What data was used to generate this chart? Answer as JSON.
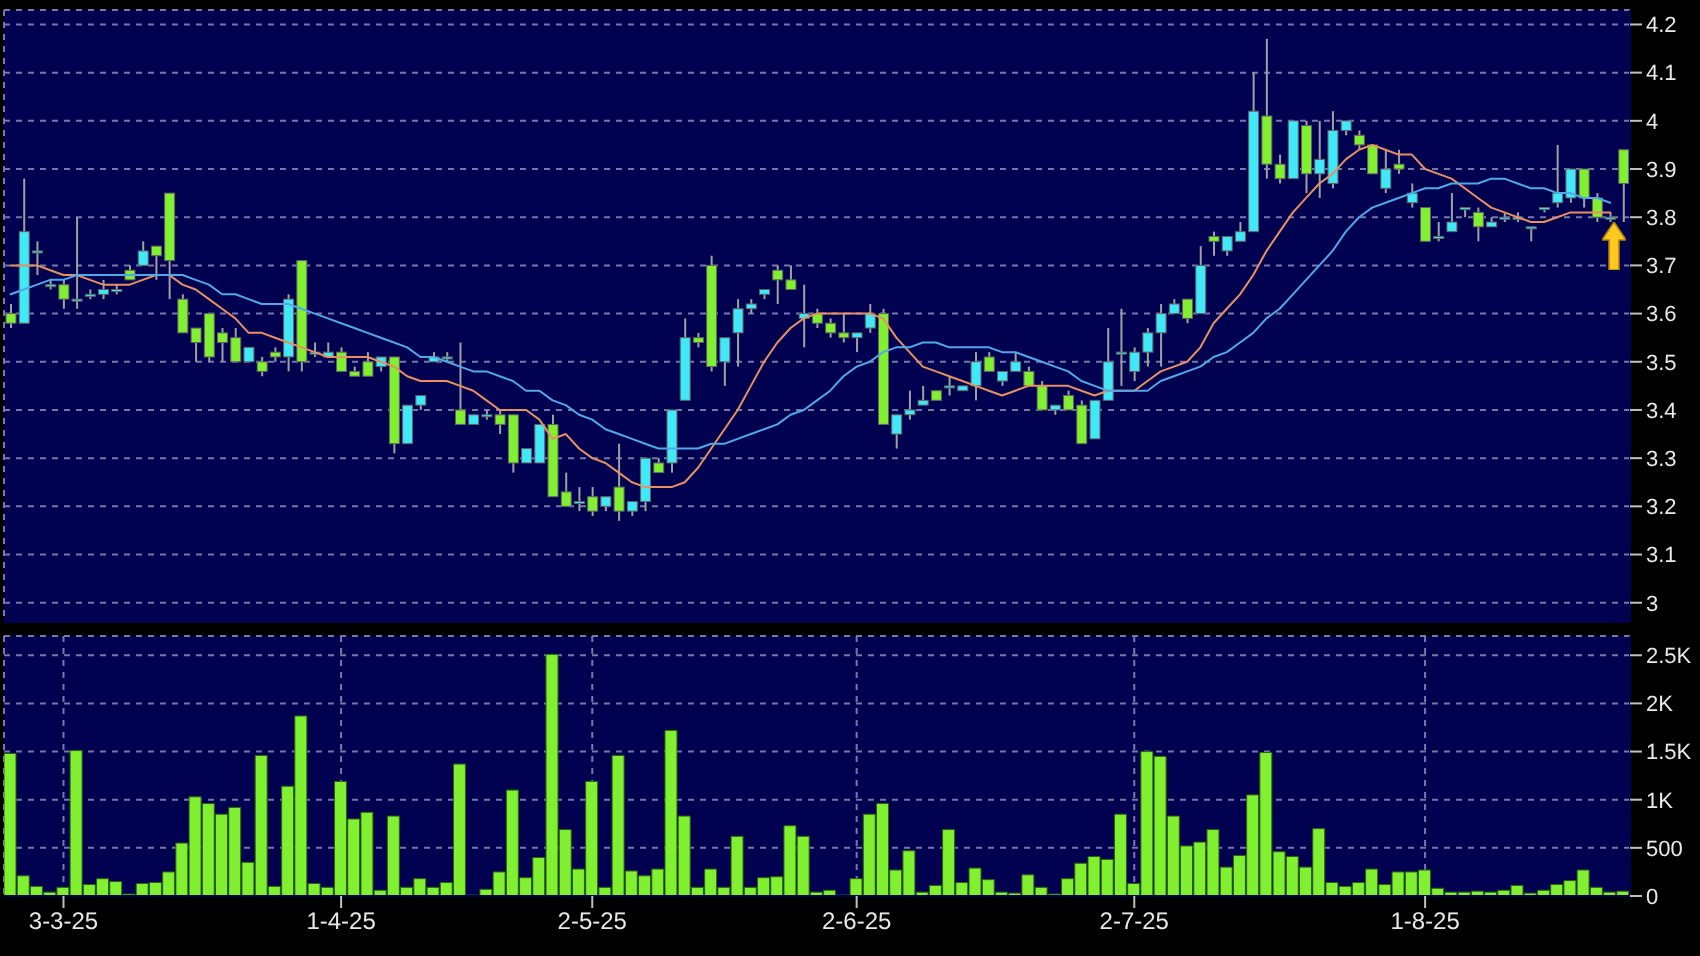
{
  "chart_data": [
    {
      "type": "candlestick",
      "tick_labels": "y",
      "grid": true,
      "categories": [
        null,
        null,
        null,
        null,
        null,
        null,
        null,
        null,
        null,
        null,
        null,
        null,
        null,
        null,
        null,
        null,
        null,
        null,
        null,
        null,
        null,
        null,
        null,
        null,
        null,
        null,
        null,
        null,
        null,
        null,
        null,
        null,
        null,
        null,
        null,
        null,
        null,
        null,
        null,
        null,
        null,
        null,
        null,
        null,
        null,
        null,
        null,
        null,
        null,
        null,
        null,
        null,
        null,
        null,
        null,
        null,
        null,
        null,
        null,
        null,
        null,
        null,
        null,
        null,
        null,
        null,
        null,
        null,
        null,
        null,
        null,
        null,
        null,
        null,
        null,
        null,
        null,
        null,
        null,
        null,
        null,
        null,
        null,
        null,
        null,
        null,
        null,
        null,
        null,
        null,
        null,
        null,
        null,
        null,
        null,
        null,
        null,
        null,
        null,
        null,
        null,
        null,
        null,
        null,
        null,
        null,
        null,
        null,
        null,
        null,
        null,
        null,
        null,
        null,
        null,
        null,
        null,
        null,
        null,
        null,
        null,
        null,
        null
      ],
      "ohlc": [
        [
          3.6,
          3.62,
          3.57,
          3.58
        ],
        [
          3.58,
          3.88,
          3.58,
          3.77
        ],
        [
          3.73,
          3.75,
          3.68,
          3.73
        ],
        [
          3.66,
          3.67,
          3.65,
          3.66
        ],
        [
          3.66,
          3.67,
          3.61,
          3.63
        ],
        [
          3.63,
          3.8,
          3.61,
          3.63
        ],
        [
          3.64,
          3.65,
          3.63,
          3.64
        ],
        [
          3.64,
          3.67,
          3.63,
          3.65
        ],
        [
          3.65,
          3.66,
          3.64,
          3.65
        ],
        [
          3.69,
          3.7,
          3.67,
          3.67
        ],
        [
          3.7,
          3.75,
          3.7,
          3.73
        ],
        [
          3.74,
          3.74,
          3.67,
          3.72
        ],
        [
          3.85,
          3.85,
          3.63,
          3.71
        ],
        [
          3.63,
          3.64,
          3.56,
          3.56
        ],
        [
          3.57,
          3.57,
          3.5,
          3.54
        ],
        [
          3.6,
          3.6,
          3.5,
          3.51
        ],
        [
          3.56,
          3.57,
          3.5,
          3.54
        ],
        [
          3.55,
          3.57,
          3.5,
          3.5
        ],
        [
          3.5,
          3.53,
          3.5,
          3.53
        ],
        [
          3.5,
          3.51,
          3.47,
          3.48
        ],
        [
          3.52,
          3.53,
          3.5,
          3.51
        ],
        [
          3.51,
          3.64,
          3.48,
          3.63
        ],
        [
          3.71,
          3.71,
          3.48,
          3.5
        ],
        [
          3.52,
          3.54,
          3.51,
          3.52
        ],
        [
          3.51,
          3.54,
          3.51,
          3.52
        ],
        [
          3.52,
          3.53,
          3.48,
          3.48
        ],
        [
          3.48,
          3.49,
          3.47,
          3.47
        ],
        [
          3.5,
          3.52,
          3.47,
          3.47
        ],
        [
          3.49,
          3.51,
          3.48,
          3.51
        ],
        [
          3.51,
          3.51,
          3.31,
          3.33
        ],
        [
          3.33,
          3.41,
          3.33,
          3.41
        ],
        [
          3.41,
          3.43,
          3.4,
          3.43
        ],
        [
          3.5,
          3.52,
          3.5,
          3.51
        ],
        [
          3.51,
          3.52,
          3.5,
          3.51
        ],
        [
          3.4,
          3.54,
          3.37,
          3.37
        ],
        [
          3.37,
          3.39,
          3.37,
          3.39
        ],
        [
          3.39,
          3.4,
          3.38,
          3.39
        ],
        [
          3.39,
          3.4,
          3.35,
          3.37
        ],
        [
          3.39,
          3.39,
          3.27,
          3.29
        ],
        [
          3.29,
          3.32,
          3.29,
          3.32
        ],
        [
          3.29,
          3.37,
          3.29,
          3.37
        ],
        [
          3.37,
          3.39,
          3.22,
          3.22
        ],
        [
          3.23,
          3.27,
          3.2,
          3.2
        ],
        [
          3.21,
          3.24,
          3.19,
          3.21
        ],
        [
          3.22,
          3.24,
          3.18,
          3.19
        ],
        [
          3.2,
          3.22,
          3.19,
          3.22
        ],
        [
          3.24,
          3.33,
          3.17,
          3.19
        ],
        [
          3.19,
          3.21,
          3.18,
          3.21
        ],
        [
          3.21,
          3.3,
          3.19,
          3.3
        ],
        [
          3.29,
          3.3,
          3.27,
          3.27
        ],
        [
          3.29,
          3.4,
          3.27,
          3.4
        ],
        [
          3.42,
          3.59,
          3.42,
          3.55
        ],
        [
          3.55,
          3.56,
          3.53,
          3.54
        ],
        [
          3.7,
          3.72,
          3.48,
          3.49
        ],
        [
          3.5,
          3.55,
          3.45,
          3.55
        ],
        [
          3.56,
          3.63,
          3.49,
          3.61
        ],
        [
          3.61,
          3.63,
          3.6,
          3.62
        ],
        [
          3.64,
          3.65,
          3.63,
          3.65
        ],
        [
          3.69,
          3.7,
          3.62,
          3.67
        ],
        [
          3.67,
          3.7,
          3.65,
          3.65
        ],
        [
          3.59,
          3.66,
          3.53,
          3.6
        ],
        [
          3.6,
          3.61,
          3.57,
          3.58
        ],
        [
          3.58,
          3.59,
          3.55,
          3.56
        ],
        [
          3.56,
          3.6,
          3.54,
          3.55
        ],
        [
          3.55,
          3.56,
          3.52,
          3.56
        ],
        [
          3.57,
          3.62,
          3.56,
          3.6
        ],
        [
          3.6,
          3.61,
          3.37,
          3.37
        ],
        [
          3.35,
          3.39,
          3.32,
          3.39
        ],
        [
          3.39,
          3.44,
          3.38,
          3.4
        ],
        [
          3.41,
          3.45,
          3.41,
          3.42
        ],
        [
          3.44,
          3.44,
          3.42,
          3.42
        ],
        [
          3.45,
          3.47,
          3.43,
          3.45
        ],
        [
          3.44,
          3.45,
          3.44,
          3.45
        ],
        [
          3.45,
          3.52,
          3.42,
          3.5
        ],
        [
          3.51,
          3.52,
          3.48,
          3.48
        ],
        [
          3.46,
          3.48,
          3.45,
          3.48
        ],
        [
          3.48,
          3.52,
          3.48,
          3.5
        ],
        [
          3.48,
          3.49,
          3.45,
          3.45
        ],
        [
          3.45,
          3.46,
          3.4,
          3.4
        ],
        [
          3.4,
          3.41,
          3.39,
          3.41
        ],
        [
          3.43,
          3.44,
          3.4,
          3.4
        ],
        [
          3.41,
          3.42,
          3.33,
          3.33
        ],
        [
          3.34,
          3.42,
          3.34,
          3.42
        ],
        [
          3.42,
          3.57,
          3.42,
          3.5
        ],
        [
          3.52,
          3.61,
          3.45,
          3.52
        ],
        [
          3.48,
          3.53,
          3.46,
          3.52
        ],
        [
          3.52,
          3.57,
          3.49,
          3.56
        ],
        [
          3.56,
          3.62,
          3.49,
          3.6
        ],
        [
          3.6,
          3.63,
          3.6,
          3.62
        ],
        [
          3.63,
          3.63,
          3.58,
          3.59
        ],
        [
          3.6,
          3.74,
          3.6,
          3.7
        ],
        [
          3.76,
          3.77,
          3.72,
          3.75
        ],
        [
          3.73,
          3.76,
          3.72,
          3.76
        ],
        [
          3.75,
          3.79,
          3.75,
          3.77
        ],
        [
          3.77,
          4.1,
          3.77,
          4.02
        ],
        [
          4.01,
          4.17,
          3.88,
          3.91
        ],
        [
          3.91,
          3.93,
          3.87,
          3.88
        ],
        [
          3.88,
          4.0,
          3.88,
          4.0
        ],
        [
          3.99,
          4.0,
          3.85,
          3.89
        ],
        [
          3.89,
          4.0,
          3.84,
          3.92
        ],
        [
          3.87,
          4.02,
          3.86,
          3.98
        ],
        [
          3.98,
          4.0,
          3.97,
          4.0
        ],
        [
          3.97,
          3.98,
          3.94,
          3.95
        ],
        [
          3.95,
          3.95,
          3.89,
          3.89
        ],
        [
          3.86,
          3.94,
          3.85,
          3.9
        ],
        [
          3.91,
          3.94,
          3.89,
          3.9
        ],
        [
          3.83,
          3.87,
          3.82,
          3.85
        ],
        [
          3.82,
          3.82,
          3.75,
          3.75
        ],
        [
          3.76,
          3.79,
          3.75,
          3.76
        ],
        [
          3.77,
          3.85,
          3.77,
          3.79
        ],
        [
          3.82,
          3.82,
          3.8,
          3.82
        ],
        [
          3.81,
          3.82,
          3.75,
          3.78
        ],
        [
          3.78,
          3.8,
          3.78,
          3.79
        ],
        [
          3.8,
          3.81,
          3.79,
          3.8
        ],
        [
          3.8,
          3.81,
          3.79,
          3.8
        ],
        [
          3.78,
          3.78,
          3.75,
          3.78
        ],
        [
          3.82,
          3.82,
          3.81,
          3.82
        ],
        [
          3.83,
          3.95,
          3.82,
          3.85
        ],
        [
          3.84,
          3.9,
          3.83,
          3.9
        ],
        [
          3.9,
          3.9,
          3.82,
          3.84
        ],
        [
          3.84,
          3.85,
          3.79,
          3.8
        ],
        [
          3.8,
          3.81,
          3.79,
          3.8
        ],
        [
          3.94,
          3.94,
          3.79,
          3.87
        ]
      ],
      "colors": [
        "#80f030",
        "#40e8f8",
        "#40e8f8",
        "#40e8f8",
        "#80f030",
        "#40e8f8",
        "#40e8f8",
        "#40e8f8",
        "#40e8f8",
        "#80f030",
        "#40e8f8",
        "#80f030",
        "#80f030",
        "#80f030",
        "#80f030",
        "#80f030",
        "#80f030",
        "#80f030",
        "#40e8f8",
        "#80f030",
        "#80f030",
        "#40e8f8",
        "#80f030",
        "#40e8f8",
        "#40e8f8",
        "#80f030",
        "#80f030",
        "#80f030",
        "#40e8f8",
        "#80f030",
        "#40e8f8",
        "#40e8f8",
        "#40e8f8",
        "#40e8f8",
        "#80f030",
        "#40e8f8",
        "#40e8f8",
        "#80f030",
        "#80f030",
        "#40e8f8",
        "#40e8f8",
        "#80f030",
        "#80f030",
        "#40e8f8",
        "#80f030",
        "#40e8f8",
        "#80f030",
        "#40e8f8",
        "#40e8f8",
        "#80f030",
        "#40e8f8",
        "#40e8f8",
        "#80f030",
        "#80f030",
        "#40e8f8",
        "#40e8f8",
        "#40e8f8",
        "#40e8f8",
        "#80f030",
        "#80f030",
        "#40e8f8",
        "#80f030",
        "#80f030",
        "#80f030",
        "#40e8f8",
        "#40e8f8",
        "#80f030",
        "#40e8f8",
        "#40e8f8",
        "#40e8f8",
        "#80f030",
        "#40e8f8",
        "#40e8f8",
        "#40e8f8",
        "#80f030",
        "#40e8f8",
        "#40e8f8",
        "#80f030",
        "#80f030",
        "#40e8f8",
        "#80f030",
        "#80f030",
        "#40e8f8",
        "#40e8f8",
        "#40e8f8",
        "#40e8f8",
        "#40e8f8",
        "#40e8f8",
        "#40e8f8",
        "#80f030",
        "#40e8f8",
        "#80f030",
        "#40e8f8",
        "#40e8f8",
        "#40e8f8",
        "#80f030",
        "#80f030",
        "#40e8f8",
        "#80f030",
        "#40e8f8",
        "#40e8f8",
        "#40e8f8",
        "#80f030",
        "#80f030",
        "#40e8f8",
        "#80f030",
        "#40e8f8",
        "#80f030",
        "#40e8f8",
        "#40e8f8",
        "#40e8f8",
        "#80f030",
        "#40e8f8",
        "#40e8f8",
        "#40e8f8",
        "#40e8f8",
        "#40e8f8",
        "#40e8f8",
        "#40e8f8",
        "#80f030",
        "#80f030",
        "#40e8f8",
        "#80f030"
      ],
      "series": [
        {
          "type": "line",
          "color": "#e89060",
          "values": [
            3.7,
            3.7,
            3.7,
            3.69,
            3.68,
            3.68,
            3.67,
            3.66,
            3.66,
            3.66,
            3.67,
            3.68,
            3.68,
            3.66,
            3.65,
            3.63,
            3.61,
            3.59,
            3.56,
            3.56,
            3.55,
            3.54,
            3.53,
            3.52,
            3.51,
            3.51,
            3.51,
            3.51,
            3.5,
            3.49,
            3.47,
            3.46,
            3.46,
            3.46,
            3.45,
            3.44,
            3.42,
            3.4,
            3.4,
            3.4,
            3.38,
            3.34,
            3.35,
            3.32,
            3.3,
            3.29,
            3.27,
            3.25,
            3.24,
            3.24,
            3.24,
            3.25,
            3.28,
            3.32,
            3.36,
            3.4,
            3.45,
            3.5,
            3.54,
            3.57,
            3.59,
            3.6,
            3.6,
            3.6,
            3.6,
            3.6,
            3.59,
            3.55,
            3.52,
            3.49,
            3.48,
            3.47,
            3.46,
            3.45,
            3.44,
            3.43,
            3.44,
            3.45,
            3.45,
            3.45,
            3.45,
            3.44,
            3.43,
            3.44,
            3.44,
            3.44,
            3.46,
            3.48,
            3.49,
            3.5,
            3.53,
            3.58,
            3.61,
            3.64,
            3.68,
            3.73,
            3.77,
            3.81,
            3.84,
            3.87,
            3.89,
            3.92,
            3.94,
            3.95,
            3.94,
            3.93,
            3.93,
            3.9,
            3.89,
            3.88,
            3.86,
            3.84,
            3.82,
            3.81,
            3.8,
            3.79,
            3.79,
            3.8,
            3.81,
            3.81,
            3.81,
            3.81,
            null
          ]
        },
        {
          "type": "line",
          "color": "#50a8e8",
          "values": [
            3.64,
            3.65,
            3.66,
            3.67,
            3.67,
            3.68,
            3.68,
            3.68,
            3.68,
            3.68,
            3.68,
            3.68,
            3.68,
            3.68,
            3.67,
            3.66,
            3.64,
            3.64,
            3.63,
            3.62,
            3.62,
            3.62,
            3.61,
            3.6,
            3.59,
            3.58,
            3.57,
            3.56,
            3.55,
            3.54,
            3.53,
            3.51,
            3.51,
            3.5,
            3.49,
            3.48,
            3.48,
            3.47,
            3.46,
            3.44,
            3.44,
            3.42,
            3.41,
            3.39,
            3.38,
            3.36,
            3.35,
            3.34,
            3.33,
            3.32,
            3.32,
            3.32,
            3.32,
            3.33,
            3.33,
            3.34,
            3.35,
            3.36,
            3.37,
            3.39,
            3.4,
            3.42,
            3.44,
            3.47,
            3.49,
            3.5,
            3.52,
            3.53,
            3.53,
            3.54,
            3.54,
            3.53,
            3.53,
            3.53,
            3.53,
            3.52,
            3.52,
            3.51,
            3.5,
            3.49,
            3.48,
            3.46,
            3.45,
            3.44,
            3.44,
            3.44,
            3.44,
            3.46,
            3.47,
            3.48,
            3.49,
            3.51,
            3.52,
            3.54,
            3.56,
            3.59,
            3.61,
            3.64,
            3.67,
            3.7,
            3.73,
            3.77,
            3.8,
            3.82,
            3.83,
            3.84,
            3.85,
            3.86,
            3.86,
            3.87,
            3.87,
            3.87,
            3.88,
            3.88,
            3.87,
            3.86,
            3.86,
            3.85,
            3.85,
            3.84,
            3.84,
            3.83,
            null
          ]
        }
      ],
      "ylim": [
        2.96,
        4.23
      ],
      "yticks": [
        3,
        3.1,
        3.2,
        3.3,
        3.4,
        3.5,
        3.6,
        3.7,
        3.8,
        3.9,
        4,
        4.1,
        4.2
      ]
    },
    {
      "type": "bar",
      "grid": true,
      "color": "#80f030",
      "categories": [
        null,
        null,
        null,
        null,
        "3-3-25",
        null,
        null,
        null,
        null,
        null,
        null,
        null,
        null,
        null,
        null,
        null,
        null,
        null,
        null,
        null,
        null,
        null,
        null,
        null,
        null,
        "1-4-25",
        null,
        null,
        null,
        null,
        null,
        null,
        null,
        null,
        null,
        null,
        null,
        null,
        null,
        null,
        null,
        null,
        null,
        null,
        "2-5-25",
        null,
        null,
        null,
        null,
        null,
        null,
        null,
        null,
        null,
        null,
        null,
        null,
        null,
        null,
        null,
        null,
        null,
        null,
        null,
        "2-6-25",
        null,
        null,
        null,
        null,
        null,
        null,
        null,
        null,
        null,
        null,
        null,
        null,
        null,
        null,
        null,
        null,
        null,
        null,
        null,
        null,
        "2-7-25",
        null,
        null,
        null,
        null,
        null,
        null,
        null,
        null,
        null,
        null,
        null,
        null,
        null,
        null,
        null,
        null,
        null,
        null,
        null,
        null,
        null,
        "1-8-25",
        null,
        null,
        null,
        null,
        null,
        null,
        null,
        null,
        null,
        null,
        null,
        null,
        null,
        null,
        null
      ],
      "values": [
        1480,
        210,
        100,
        40,
        90,
        1510,
        120,
        180,
        150,
        20,
        130,
        140,
        250,
        550,
        1030,
        960,
        850,
        920,
        350,
        1460,
        100,
        1140,
        1870,
        130,
        90,
        1190,
        800,
        870,
        60,
        830,
        90,
        180,
        90,
        140,
        1370,
        10,
        70,
        250,
        1100,
        190,
        400,
        2510,
        690,
        280,
        1190,
        90,
        1460,
        260,
        210,
        280,
        1720,
        830,
        90,
        280,
        90,
        620,
        90,
        190,
        200,
        730,
        620,
        40,
        60,
        10,
        180,
        850,
        960,
        270,
        470,
        40,
        110,
        690,
        140,
        290,
        170,
        40,
        30,
        220,
        90,
        20,
        180,
        340,
        410,
        380,
        850,
        130,
        1500,
        1450,
        830,
        520,
        560,
        690,
        300,
        420,
        1050,
        1490,
        460,
        410,
        300,
        700,
        140,
        100,
        140,
        280,
        120,
        250,
        250,
        270,
        80,
        40,
        40,
        50,
        40,
        60,
        110,
        30,
        60,
        120,
        160,
        270,
        90,
        40,
        50
      ],
      "ylim": [
        0,
        2700
      ],
      "yticks": [
        0,
        500,
        {
          "value": 1000,
          "label": "1K"
        },
        {
          "value": 1500,
          "label": "1.5K"
        },
        {
          "value": 2000,
          "label": "2K"
        },
        {
          "value": 2500,
          "label": "2.5K"
        }
      ]
    }
  ]
}
